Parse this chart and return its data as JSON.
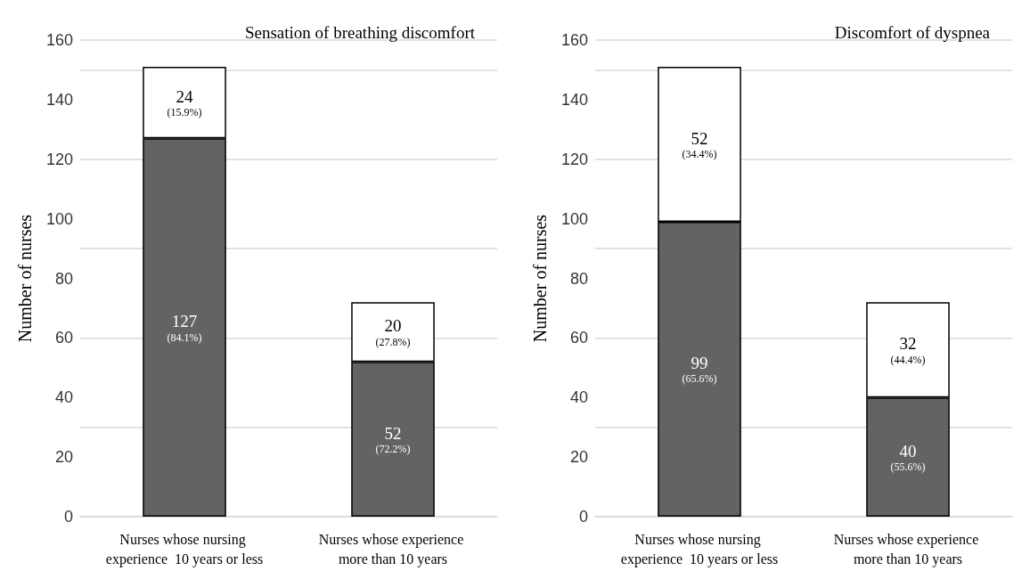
{
  "chart_data": [
    {
      "type": "bar",
      "title": "Sensation of breathing discomfort",
      "ylabel": "Number of nurses",
      "categories": [
        "Nurses whose nursing experience  10 years or less",
        "Nurses whose experience more than 10 years"
      ],
      "stacked": true,
      "ylim": [
        0,
        160
      ],
      "yticks": [
        0,
        20,
        40,
        60,
        80,
        100,
        120,
        140,
        160
      ],
      "grid": "y",
      "series": [
        {
          "color": "#636363",
          "values": [
            127,
            52
          ],
          "value_labels": [
            "127\n(84.1%)",
            "52\n(72.2%)"
          ]
        },
        {
          "color": "#ffffff",
          "values": [
            24,
            20
          ],
          "value_labels": [
            "24\n(15.9%)",
            "20\n(27.8%)"
          ]
        }
      ]
    },
    {
      "type": "bar",
      "title": "Discomfort of dyspnea",
      "ylabel": "Number of nurses",
      "categories": [
        "Nurses whose nursing experience  10 years or less",
        "Nurses whose experience more than 10 years"
      ],
      "stacked": true,
      "ylim": [
        0,
        160
      ],
      "yticks": [
        0,
        20,
        40,
        60,
        80,
        100,
        120,
        140,
        160
      ],
      "grid": "y",
      "series": [
        {
          "color": "#636363",
          "values": [
            99,
            40
          ],
          "value_labels": [
            "99\n(65.6%)",
            "40\n(55.6%)"
          ]
        },
        {
          "color": "#ffffff",
          "values": [
            52,
            32
          ],
          "value_labels": [
            "52\n(34.4%)",
            "32\n(44.4%)"
          ]
        }
      ]
    }
  ]
}
